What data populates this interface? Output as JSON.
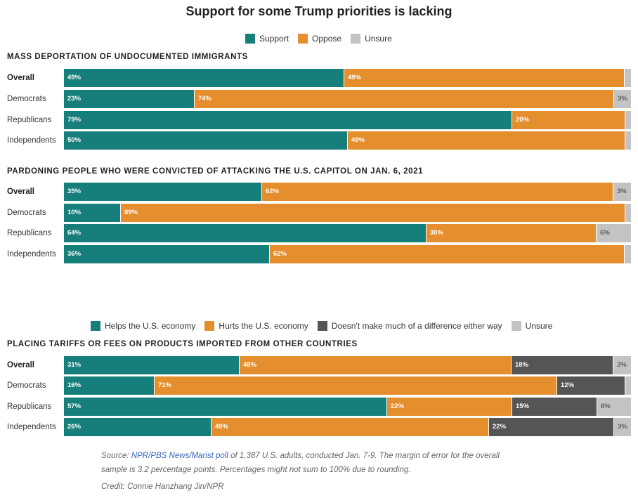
{
  "title": "Support for some Trump priorities is lacking",
  "legend1": [
    {
      "label": "Support",
      "color": "#177f7b"
    },
    {
      "label": "Oppose",
      "color": "#e48e2d"
    },
    {
      "label": "Unsure",
      "color": "#c3c3c3"
    }
  ],
  "legend2": [
    {
      "label": "Helps the U.S. economy",
      "color": "#177f7b"
    },
    {
      "label": "Hurts the U.S. economy",
      "color": "#e48e2d"
    },
    {
      "label": "Doesn't make much of a difference either way",
      "color": "#555555"
    },
    {
      "label": "Unsure",
      "color": "#c3c3c3"
    }
  ],
  "chart_data": [
    {
      "type": "bar",
      "orientation": "horizontal-stacked-100",
      "title": "MASS DEPORTATION OF UNDOCUMENTED IMMIGRANTS",
      "categories": [
        "Overall",
        "Democrats",
        "Republicans",
        "Independents"
      ],
      "series": [
        {
          "name": "Support",
          "values": [
            49,
            23,
            79,
            50
          ]
        },
        {
          "name": "Oppose",
          "values": [
            49,
            74,
            20,
            49
          ]
        },
        {
          "name": "Unsure",
          "values": [
            1,
            3,
            1,
            1
          ]
        }
      ],
      "labels": [
        [
          "49%",
          "49%",
          ""
        ],
        [
          "23%",
          "74%",
          "3%"
        ],
        [
          "79%",
          "20%",
          ""
        ],
        [
          "50%",
          "49%",
          ""
        ]
      ]
    },
    {
      "type": "bar",
      "orientation": "horizontal-stacked-100",
      "title": "PARDONING PEOPLE WHO WERE CONVICTED OF ATTACKING THE U.S. CAPITOL ON JAN. 6, 2021",
      "categories": [
        "Overall",
        "Democrats",
        "Republicans",
        "Independents"
      ],
      "series": [
        {
          "name": "Support",
          "values": [
            35,
            10,
            64,
            36
          ]
        },
        {
          "name": "Oppose",
          "values": [
            62,
            89,
            30,
            62
          ]
        },
        {
          "name": "Unsure",
          "values": [
            3,
            1,
            6,
            1
          ]
        }
      ],
      "labels": [
        [
          "35%",
          "62%",
          "3%"
        ],
        [
          "10%",
          "89%",
          ""
        ],
        [
          "64%",
          "30%",
          "6%"
        ],
        [
          "36%",
          "62%",
          ""
        ]
      ]
    },
    {
      "type": "bar",
      "orientation": "horizontal-stacked-100",
      "title": "PLACING TARIFFS OR FEES ON PRODUCTS IMPORTED FROM OTHER COUNTRIES",
      "categories": [
        "Overall",
        "Democrats",
        "Republicans",
        "Independents"
      ],
      "series": [
        {
          "name": "Helps the U.S. economy",
          "values": [
            31,
            16,
            57,
            26
          ]
        },
        {
          "name": "Hurts the U.S. economy",
          "values": [
            48,
            71,
            22,
            49
          ]
        },
        {
          "name": "Doesn't make much of a difference either way",
          "values": [
            18,
            12,
            15,
            22
          ]
        },
        {
          "name": "Unsure",
          "values": [
            3,
            1,
            6,
            3
          ]
        }
      ],
      "labels": [
        [
          "31%",
          "48%",
          "18%",
          "3%"
        ],
        [
          "16%",
          "71%",
          "12%",
          ""
        ],
        [
          "57%",
          "22%",
          "15%",
          "6%"
        ],
        [
          "26%",
          "49%",
          "22%",
          "3%"
        ]
      ]
    }
  ],
  "footer": {
    "source_prefix": "Source: ",
    "source_link": "NPR/PBS News/Marist poll",
    "source_rest": " of 1,387 U.S. adults, conducted Jan. 7-9. The margin of error for the overall",
    "source_line2": "sample is 3.2 percentage points. Percentages might not sum to 100% due to rounding.",
    "credit": "Credit: Connie Hanzhang Jin/NPR"
  }
}
